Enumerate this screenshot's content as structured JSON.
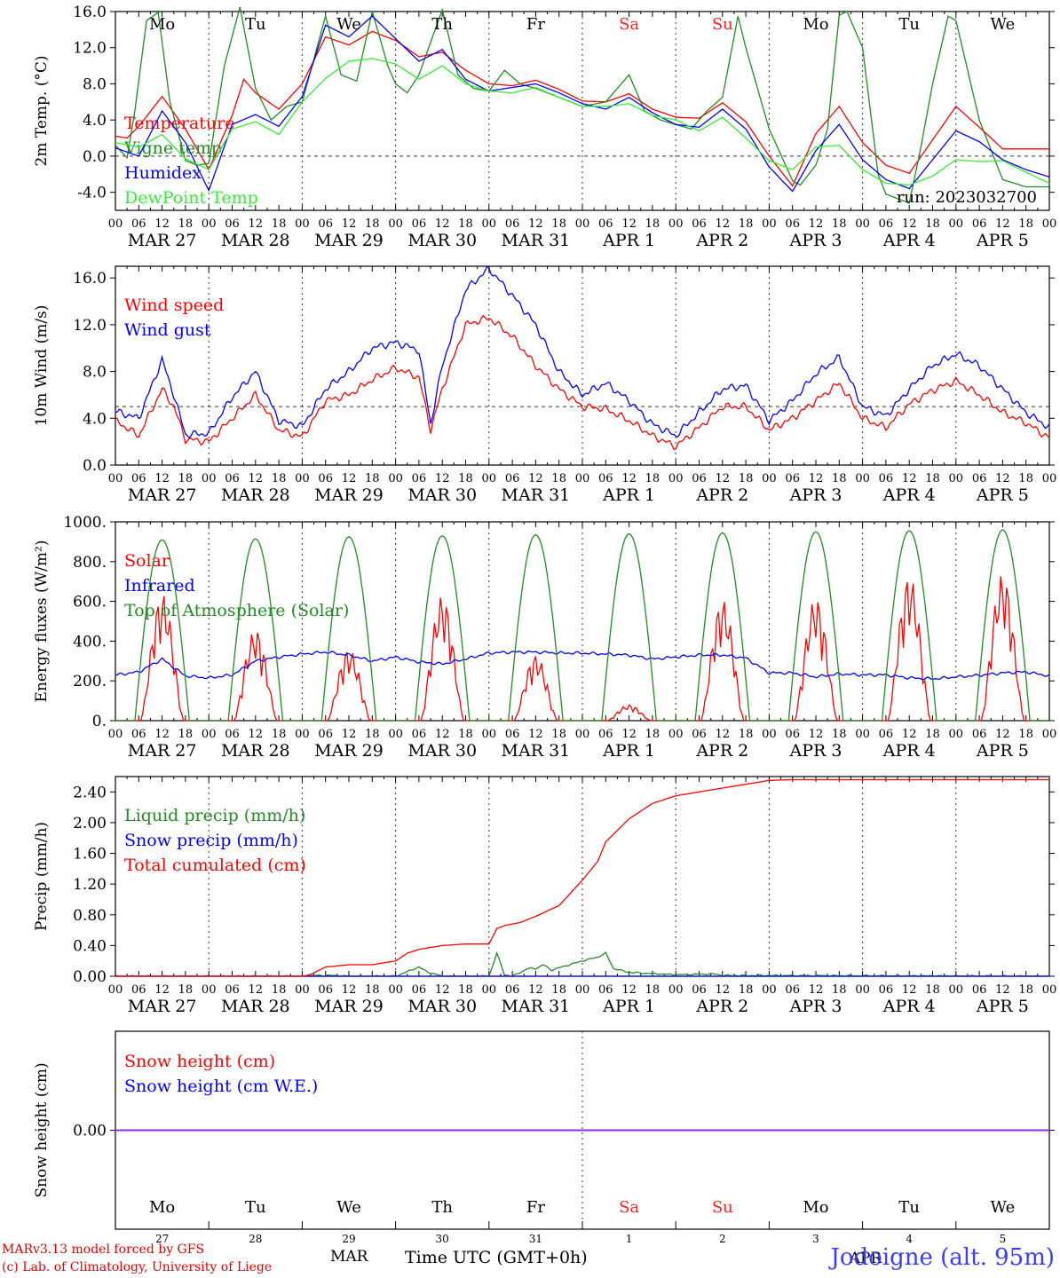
{
  "days": [
    "Mo",
    "Tu",
    "We",
    "Th",
    "Fr",
    "Sa",
    "Su",
    "Mo",
    "Tu",
    "We"
  ],
  "weekend_days": [
    5,
    6
  ],
  "dates": [
    "MAR 27",
    "MAR 28",
    "MAR 29",
    "MAR 30",
    "MAR 31",
    "APR 1",
    "APR 2",
    "APR 3",
    "APR 4",
    "APR 5"
  ],
  "day_numbers": [
    "27",
    "28",
    "29",
    "30",
    "31",
    "1",
    "2",
    "3",
    "4",
    "5"
  ],
  "hour_ticks": [
    "00",
    "06",
    "12",
    "18"
  ],
  "colors": {
    "red": "#ff0000",
    "green": "#228b22",
    "blue": "#0000ff",
    "lightgreen": "#33ee33",
    "weekend": "#ff2020",
    "purple": "#8a2be2"
  },
  "footer": {
    "credit1": "MARv3.13 model forced by GFS",
    "credit2": "(c) Lab. of Climatology, University of Liege",
    "location": "Jodoigne (alt. 95m)",
    "time_label": "Time UTC (GMT+0h)",
    "month_label": "MAR",
    "month_label2": "APR"
  },
  "chart_data": [
    {
      "type": "line",
      "ylabel": "2m Temp. (°C)",
      "ylim": [
        -6,
        16
      ],
      "yticks": [
        "16.0",
        "12.0",
        "8.0",
        "4.0",
        "0.0",
        "-4.0"
      ],
      "yvals": [
        16,
        12,
        8,
        4,
        0,
        -4
      ],
      "run_label": "run: 2023032700",
      "grid": "vertical dotted at 00 UTC, dashed zero line",
      "series": [
        {
          "name": "Temperature",
          "color": "red",
          "x": [
            0,
            3,
            6,
            12,
            18,
            24,
            30,
            33,
            36,
            42,
            48,
            54,
            60,
            66,
            72,
            78,
            84,
            90,
            96,
            102,
            108,
            114,
            120,
            126,
            132,
            138,
            144,
            150,
            156,
            162,
            168,
            174,
            180,
            186,
            192,
            198,
            204,
            210,
            216,
            222,
            228,
            234,
            240
          ],
          "values": [
            2.2,
            2.0,
            3.3,
            6.6,
            3.0,
            -1.5,
            4.5,
            8.5,
            7.0,
            5.2,
            8.0,
            13.2,
            12.3,
            13.8,
            12.8,
            11.0,
            11.5,
            9.5,
            8.0,
            7.8,
            8.4,
            7.4,
            6.1,
            6.0,
            6.9,
            5.2,
            4.3,
            4.2,
            5.9,
            3.8,
            0.0,
            -3.3,
            2.5,
            5.5,
            1.5,
            -1.0,
            -1.9,
            1.8,
            5.5,
            3.2,
            0.8,
            0.8,
            0.8
          ]
        },
        {
          "name": "Vigne temp",
          "color": "green",
          "x": [
            0,
            3,
            5,
            8,
            11,
            14,
            18,
            21,
            24,
            28,
            32,
            36,
            40,
            44,
            48,
            54,
            58,
            62,
            66,
            70,
            72,
            75,
            78,
            84,
            88,
            92,
            96,
            100,
            104,
            108,
            114,
            120,
            126,
            132,
            136,
            140,
            144,
            148,
            152,
            156,
            160,
            162,
            168,
            174,
            176,
            180,
            183,
            186,
            188,
            192,
            196,
            198,
            204,
            207,
            210,
            214,
            216,
            222,
            228,
            234,
            240
          ],
          "values": [
            1.2,
            -0.2,
            5.0,
            15.0,
            15.9,
            6.0,
            -0.5,
            -1.0,
            -0.8,
            10.0,
            16.5,
            7.5,
            4.0,
            5.5,
            6.0,
            15.5,
            9.0,
            8.3,
            16.0,
            10.0,
            8.0,
            7.0,
            9.0,
            16.2,
            9.0,
            7.5,
            7.2,
            9.5,
            8.0,
            7.5,
            6.5,
            5.5,
            6.0,
            9.0,
            5.0,
            4.0,
            3.5,
            3.0,
            5.0,
            6.5,
            15.5,
            12.0,
            3.0,
            -2.7,
            -3.2,
            -1.0,
            3.0,
            15.6,
            16.0,
            12.0,
            -2.0,
            -4.2,
            -5.2,
            1.0,
            8.0,
            15.5,
            15.0,
            4.0,
            -2.6,
            -3.4,
            -3.4
          ]
        },
        {
          "name": "Humidex",
          "color": "blue",
          "x": [
            0,
            6,
            12,
            18,
            24,
            30,
            36,
            42,
            48,
            54,
            60,
            66,
            72,
            78,
            84,
            90,
            96,
            102,
            108,
            114,
            120,
            126,
            132,
            138,
            144,
            150,
            156,
            162,
            168,
            174,
            180,
            186,
            192,
            198,
            204,
            210,
            216,
            222,
            228,
            234,
            240
          ],
          "values": [
            0.9,
            0.0,
            5.0,
            1.5,
            -3.8,
            3.5,
            4.6,
            3.3,
            6.6,
            14.5,
            13.2,
            15.5,
            13.0,
            10.5,
            11.8,
            8.5,
            7.2,
            7.6,
            8.0,
            7.0,
            5.8,
            5.2,
            6.5,
            4.8,
            3.5,
            3.2,
            5.2,
            3.0,
            -1.2,
            -3.9,
            0.6,
            3.5,
            -0.4,
            -2.6,
            -3.6,
            -0.4,
            2.8,
            1.6,
            -0.4,
            -1.5,
            -2.3
          ]
        },
        {
          "name": "DewPoint Temp",
          "color": "lightgreen",
          "x": [
            0,
            6,
            12,
            18,
            24,
            30,
            36,
            42,
            48,
            54,
            60,
            66,
            72,
            78,
            84,
            90,
            96,
            102,
            108,
            114,
            120,
            126,
            132,
            138,
            144,
            150,
            156,
            162,
            168,
            174,
            180,
            186,
            192,
            198,
            204,
            210,
            216,
            222,
            228,
            234,
            240
          ],
          "values": [
            1.5,
            1.0,
            2.4,
            -0.3,
            -1.5,
            3.0,
            3.8,
            2.4,
            6.0,
            8.6,
            10.5,
            10.8,
            10.2,
            8.5,
            10.0,
            8.0,
            7.2,
            7.0,
            7.6,
            6.5,
            5.5,
            5.5,
            5.8,
            4.5,
            4.0,
            2.8,
            4.3,
            2.0,
            -0.5,
            -1.5,
            1.0,
            1.2,
            -1.5,
            -3.0,
            -3.2,
            -2.2,
            -0.4,
            -0.6,
            -0.5,
            -1.8,
            -3.0
          ]
        }
      ]
    },
    {
      "type": "line",
      "ylabel": "10m Wind (m/s)",
      "ylim": [
        0,
        17
      ],
      "yticks": [
        "16.0",
        "12.0",
        "8.0",
        "4.0",
        "0.0"
      ],
      "yvals": [
        16,
        12,
        8,
        4,
        0
      ],
      "series": [
        {
          "name": "Wind speed",
          "color": "red",
          "x": [
            0,
            6,
            12,
            15,
            18,
            24,
            30,
            36,
            42,
            48,
            54,
            60,
            66,
            72,
            78,
            81,
            84,
            90,
            96,
            102,
            108,
            114,
            120,
            126,
            132,
            138,
            144,
            150,
            156,
            162,
            168,
            174,
            180,
            186,
            192,
            198,
            204,
            210,
            216,
            222,
            228,
            234,
            240
          ],
          "values": [
            3.8,
            2.5,
            6.5,
            5.0,
            2.2,
            2.0,
            4.0,
            6.0,
            3.0,
            2.4,
            5.5,
            6.0,
            7.3,
            8.3,
            7.5,
            3.0,
            6.5,
            12.0,
            12.6,
            11.0,
            8.5,
            6.5,
            5.0,
            4.8,
            3.8,
            2.5,
            1.6,
            3.2,
            5.0,
            5.0,
            3.0,
            4.0,
            5.5,
            7.0,
            4.0,
            3.2,
            5.2,
            6.4,
            7.2,
            6.0,
            4.5,
            3.6,
            2.3
          ]
        },
        {
          "name": "Wind gust",
          "color": "blue",
          "x": [
            0,
            6,
            12,
            15,
            18,
            24,
            30,
            36,
            42,
            48,
            54,
            60,
            66,
            72,
            78,
            81,
            84,
            90,
            96,
            102,
            108,
            114,
            120,
            126,
            132,
            138,
            144,
            150,
            156,
            162,
            168,
            174,
            180,
            186,
            192,
            198,
            204,
            210,
            216,
            222,
            228,
            234,
            240
          ],
          "values": [
            4.6,
            4.0,
            9.0,
            6.0,
            2.6,
            2.7,
            5.8,
            8.0,
            3.8,
            3.3,
            6.5,
            8.0,
            10.0,
            10.5,
            9.8,
            3.5,
            8.5,
            15.0,
            16.8,
            14.5,
            12.0,
            8.0,
            6.0,
            7.0,
            5.5,
            3.5,
            2.5,
            4.5,
            6.5,
            6.8,
            3.8,
            5.5,
            7.8,
            9.2,
            5.0,
            4.2,
            6.5,
            8.5,
            9.5,
            8.5,
            6.5,
            4.5,
            3.2
          ]
        }
      ]
    },
    {
      "type": "line",
      "ylabel": "Energy fluxes (W/m²)",
      "ylim": [
        0,
        1000
      ],
      "yticks": [
        "1000.",
        "800.",
        "600.",
        "400.",
        "200.",
        "0."
      ],
      "yvals": [
        1000,
        800,
        600,
        400,
        200,
        0
      ],
      "series": [
        {
          "name": "Solar",
          "color": "red",
          "day_peaks": [
            640,
            460,
            360,
            630,
            330,
            80,
            610,
            620,
            730,
            740
          ]
        },
        {
          "name": "Infrared",
          "color": "blue",
          "x": [
            0,
            6,
            12,
            18,
            24,
            30,
            36,
            42,
            48,
            54,
            60,
            66,
            72,
            78,
            84,
            90,
            96,
            102,
            108,
            114,
            120,
            126,
            132,
            138,
            144,
            150,
            156,
            162,
            168,
            174,
            180,
            186,
            192,
            198,
            204,
            210,
            216,
            222,
            228,
            234,
            240
          ],
          "values": [
            230,
            245,
            310,
            225,
            215,
            230,
            300,
            320,
            335,
            345,
            330,
            300,
            320,
            295,
            285,
            310,
            340,
            345,
            345,
            340,
            340,
            335,
            330,
            310,
            320,
            330,
            330,
            315,
            240,
            240,
            220,
            235,
            230,
            230,
            215,
            210,
            220,
            228,
            240,
            245,
            225
          ]
        },
        {
          "name": "Top of Atmosphere (Solar)",
          "color": "green",
          "day_peaks": [
            910,
            915,
            925,
            930,
            935,
            940,
            945,
            950,
            955,
            960
          ]
        }
      ]
    },
    {
      "type": "line",
      "ylabel": "Precip (mm/h)",
      "ylim": [
        0,
        2.6
      ],
      "yticks": [
        "2.40",
        "2.00",
        "1.60",
        "1.20",
        "0.80",
        "0.40",
        "0.00"
      ],
      "yvals": [
        2.4,
        2.0,
        1.6,
        1.2,
        0.8,
        0.4,
        0.0
      ],
      "series": [
        {
          "name": "Liquid precip (mm/h)",
          "color": "green",
          "x": [
            0,
            48,
            52,
            56,
            60,
            72,
            76,
            78,
            80,
            84,
            96,
            98,
            100,
            102,
            104,
            106,
            108,
            110,
            112,
            120,
            124,
            126,
            128,
            132,
            144,
            154,
            156,
            240
          ],
          "values": [
            0,
            0,
            0.01,
            0.01,
            0,
            0,
            0.08,
            0.12,
            0.06,
            0,
            0,
            0.3,
            0.02,
            0,
            0.05,
            0.1,
            0.1,
            0.15,
            0.08,
            0.2,
            0.25,
            0.3,
            0.1,
            0.05,
            0.02,
            0.03,
            0.01,
            0
          ]
        },
        {
          "name": "Snow precip (mm/h)",
          "color": "blue",
          "x": [
            0,
            240
          ],
          "values": [
            0,
            0
          ]
        },
        {
          "name": "Total cumulated (cm)",
          "color": "red",
          "x": [
            0,
            48,
            50,
            54,
            60,
            66,
            72,
            75,
            78,
            84,
            90,
            96,
            98,
            100,
            104,
            108,
            114,
            120,
            124,
            126,
            132,
            138,
            144,
            150,
            156,
            162,
            168,
            174,
            180,
            186,
            192,
            198,
            204,
            210,
            216,
            222,
            228,
            234,
            240
          ],
          "values": [
            0,
            0,
            0.02,
            0.12,
            0.15,
            0.15,
            0.2,
            0.3,
            0.35,
            0.4,
            0.42,
            0.42,
            0.62,
            0.66,
            0.7,
            0.78,
            0.92,
            1.25,
            1.5,
            1.75,
            2.05,
            2.25,
            2.35,
            2.4,
            2.45,
            2.5,
            2.55,
            2.56,
            2.56,
            2.56,
            2.56,
            2.56,
            2.56,
            2.56,
            2.56,
            2.56,
            2.56,
            2.56,
            2.56
          ]
        }
      ]
    },
    {
      "type": "line",
      "ylabel": "Snow height (cm)",
      "ylim": [
        -1,
        1
      ],
      "yticks": [
        "0.00"
      ],
      "yvals": [
        0
      ],
      "series": [
        {
          "name": "Snow height (cm)",
          "color": "red",
          "x": [
            0,
            240
          ],
          "values": [
            0,
            0
          ]
        },
        {
          "name": "Snow height (cm W.E.)",
          "color": "blue",
          "x": [
            0,
            240
          ],
          "values": [
            0,
            0
          ]
        }
      ]
    }
  ]
}
